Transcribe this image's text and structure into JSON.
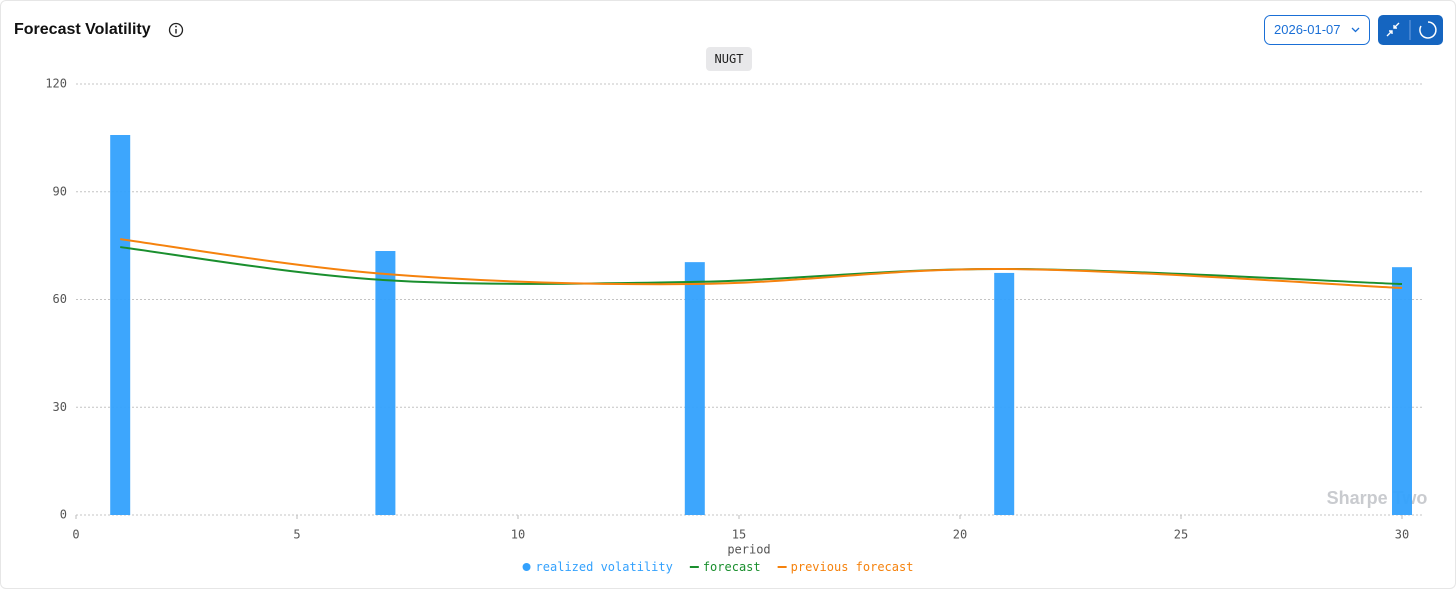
{
  "header": {
    "title": "Forecast Volatility",
    "date": "2026-01-07"
  },
  "watermark": "Sharpe Two",
  "chart_data": {
    "type": "combo",
    "subtitle": "NUGT",
    "x_label": "period",
    "x": [
      1,
      7,
      14,
      21,
      30
    ],
    "series": [
      {
        "name": "realized volatility",
        "type": "bar",
        "color": "#33a1fd",
        "values": [
          105.8,
          73.5,
          70.4,
          67.4,
          69.0
        ]
      },
      {
        "name": "forecast",
        "type": "line",
        "color": "#1a8f2e",
        "values": [
          74.6,
          65.4,
          64.9,
          68.5,
          64.3
        ]
      },
      {
        "name": "previous forecast",
        "type": "line",
        "color": "#f5820d",
        "values": [
          76.8,
          67.1,
          64.3,
          68.5,
          63.2
        ]
      }
    ],
    "xlim": [
      0,
      30
    ],
    "ylim": [
      0,
      120
    ],
    "xticks": [
      0,
      5,
      10,
      15,
      20,
      25,
      30
    ],
    "yticks": [
      0,
      30,
      60,
      90,
      120
    ],
    "grid": true
  }
}
